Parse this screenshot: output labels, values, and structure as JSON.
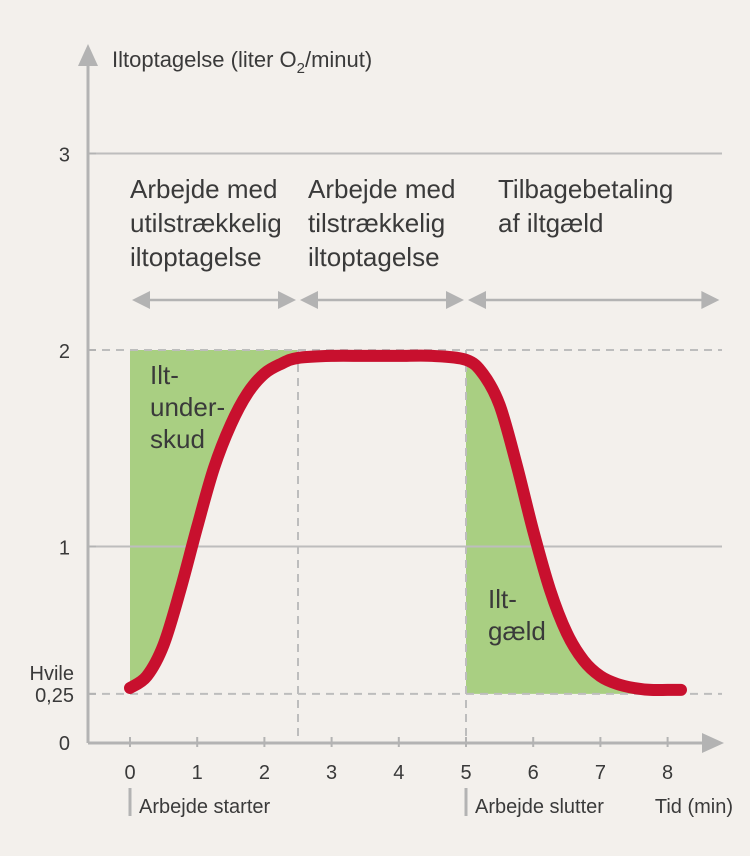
{
  "chart_data": {
    "type": "line",
    "ylabel": {
      "prefix": "Iltoptagelse (liter O",
      "sub": "2",
      "suffix": "/minut)"
    },
    "xlabel": "Tid (min)",
    "x_ticks": [
      "0",
      "1",
      "2",
      "3",
      "4",
      "5",
      "6",
      "7",
      "8"
    ],
    "y_ticks": [
      {
        "value": 3,
        "label": "3"
      },
      {
        "value": 2,
        "label": "2"
      },
      {
        "value": 1,
        "label": "1"
      },
      {
        "value": 0.25,
        "label": "0,25"
      },
      {
        "value": 0,
        "label": "0"
      }
    ],
    "hvile_label": "Hvile",
    "xlim": [
      -0.6,
      9.0
    ],
    "ylim": [
      0,
      3.5
    ],
    "grid": true,
    "rest_level": 0.25,
    "work_level": 2,
    "work_start": 0,
    "steady_start": 2.5,
    "work_end": 5,
    "series": [
      {
        "color": "#c8102e",
        "x": [
          0,
          0.25,
          0.5,
          0.75,
          1.0,
          1.25,
          1.5,
          1.75,
          2.0,
          2.25,
          2.5,
          3.0,
          3.5,
          4.0,
          4.5,
          5.0,
          5.25,
          5.5,
          5.75,
          6.0,
          6.25,
          6.5,
          6.75,
          7.0,
          7.25,
          7.5,
          7.75,
          8.0,
          8.2
        ],
        "y": [
          0.28,
          0.34,
          0.5,
          0.78,
          1.1,
          1.4,
          1.62,
          1.78,
          1.88,
          1.93,
          1.96,
          1.97,
          1.97,
          1.97,
          1.97,
          1.95,
          1.88,
          1.72,
          1.42,
          1.08,
          0.78,
          0.56,
          0.42,
          0.34,
          0.3,
          0.28,
          0.27,
          0.27,
          0.27
        ]
      }
    ],
    "phases": [
      {
        "lines": [
          "Arbejde med",
          "utilstrækkelig",
          "iltoptagelse"
        ],
        "from": 0,
        "to": 2.5
      },
      {
        "lines": [
          "Arbejde med",
          "tilstrækkelig",
          "iltoptagelse"
        ],
        "from": 2.5,
        "to": 5
      },
      {
        "lines": [
          "Tilbagebetaling",
          "af iltgæld"
        ],
        "from": 5,
        "to": 8.8
      }
    ],
    "areas": [
      {
        "lines": [
          "Ilt-",
          "under-",
          "skud"
        ],
        "color": "#a9cf82"
      },
      {
        "lines": [
          "Ilt-",
          "gæld"
        ],
        "color": "#a9cf82"
      }
    ],
    "markers": [
      "Arbejde starter",
      "Arbejde slutter"
    ],
    "colors": {
      "curve": "#c8102e",
      "fill": "#a9cf82",
      "axis": "#b3b3b3",
      "grid": "#bdbdbd",
      "text": "#3a3a3a"
    }
  }
}
